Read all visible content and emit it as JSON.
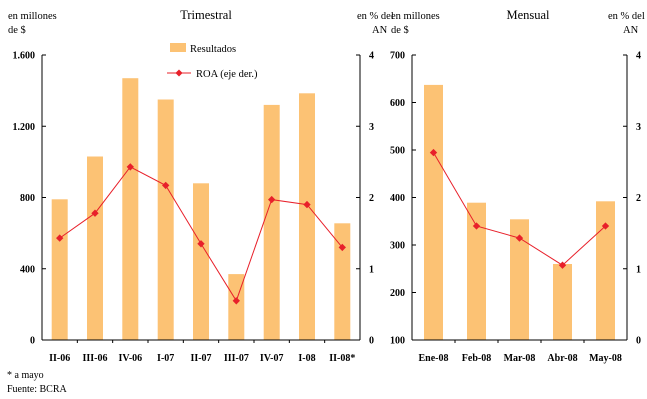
{
  "colors": {
    "bar": "#fcc274",
    "line": "#e8202a",
    "axis": "#000000"
  },
  "chart_data": [
    {
      "type": "bar",
      "title": "Trimestral",
      "ylabel_left": [
        "en millones",
        "de $"
      ],
      "ylabel_right": [
        "en % del",
        "AN"
      ],
      "ylim_left": [
        0,
        1600
      ],
      "yticks_left": [
        0,
        400,
        800,
        1200,
        1600
      ],
      "ytick_labels_left": [
        "0",
        "400",
        "800",
        "1.200",
        "1.600"
      ],
      "ylim_right": [
        0,
        4
      ],
      "yticks_right": [
        0,
        1,
        2,
        3,
        4
      ],
      "ytick_labels_right": [
        "0",
        "1",
        "2",
        "3",
        "4"
      ],
      "categories": [
        "II-06",
        "III-06",
        "IV-06",
        "I-07",
        "II-07",
        "III-07",
        "IV-07",
        "I-08",
        "II-08*"
      ],
      "series": [
        {
          "name": "Resultados",
          "type": "bar",
          "axis": "left",
          "values": [
            790,
            1030,
            1470,
            1350,
            880,
            370,
            1320,
            1385,
            655
          ]
        },
        {
          "name": "ROA (eje der.)",
          "type": "line",
          "axis": "right",
          "values": [
            1.43,
            1.78,
            2.43,
            2.17,
            1.35,
            0.55,
            1.97,
            1.9,
            1.3
          ]
        }
      ],
      "legend": "top-center"
    },
    {
      "type": "bar",
      "title": "Mensual",
      "ylabel_left": [
        "en millones",
        "de $"
      ],
      "ylabel_right": [
        "en % del",
        "AN"
      ],
      "ylim_left": [
        100,
        700
      ],
      "yticks_left": [
        100,
        200,
        300,
        400,
        500,
        600,
        700
      ],
      "ytick_labels_left": [
        "100",
        "200",
        "300",
        "400",
        "500",
        "600",
        "700"
      ],
      "ylim_right": [
        0,
        4
      ],
      "yticks_right": [
        0,
        1,
        2,
        3,
        4
      ],
      "ytick_labels_right": [
        "0",
        "1",
        "2",
        "3",
        "4"
      ],
      "categories": [
        "Ene-08",
        "Feb-08",
        "Mar-08",
        "Abr-08",
        "May-08"
      ],
      "series": [
        {
          "name": "Resultados",
          "type": "bar",
          "axis": "left",
          "values": [
            637,
            389,
            354,
            260,
            392
          ]
        },
        {
          "name": "ROA",
          "type": "line",
          "axis": "right",
          "values": [
            2.63,
            1.6,
            1.43,
            1.05,
            1.6
          ]
        }
      ]
    }
  ],
  "notes": [
    "* a mayo",
    "Fuente: BCRA"
  ]
}
